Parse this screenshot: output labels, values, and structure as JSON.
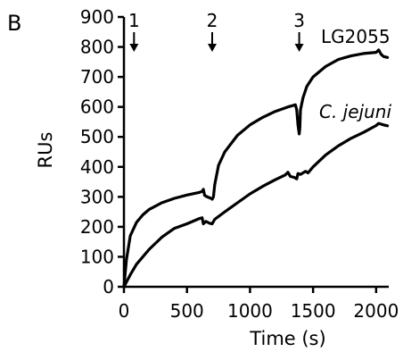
{
  "chart_data": {
    "type": "line",
    "panel_label": "B",
    "title": "",
    "xlabel": "Time (s)",
    "ylabel": "RUs",
    "xlim": [
      0,
      2100
    ],
    "ylim": [
      0,
      900
    ],
    "x_ticks": [
      0,
      500,
      1000,
      1500,
      2000
    ],
    "y_ticks": [
      0,
      100,
      200,
      300,
      400,
      500,
      600,
      700,
      800,
      900
    ],
    "grid": false,
    "legend": "none",
    "series": [
      {
        "name": "LG2055",
        "color": "#000000",
        "points": [
          [
            0,
            0
          ],
          [
            20,
            90
          ],
          [
            50,
            170
          ],
          [
            100,
            215
          ],
          [
            150,
            240
          ],
          [
            200,
            258
          ],
          [
            300,
            280
          ],
          [
            400,
            295
          ],
          [
            500,
            306
          ],
          [
            600,
            315
          ],
          [
            620,
            318
          ],
          [
            630,
            325
          ],
          [
            640,
            305
          ],
          [
            660,
            300
          ],
          [
            690,
            295
          ],
          [
            700,
            292
          ],
          [
            710,
            300
          ],
          [
            720,
            340
          ],
          [
            750,
            405
          ],
          [
            800,
            450
          ],
          [
            900,
            505
          ],
          [
            1000,
            540
          ],
          [
            1100,
            565
          ],
          [
            1200,
            585
          ],
          [
            1300,
            600
          ],
          [
            1360,
            607
          ],
          [
            1370,
            590
          ],
          [
            1380,
            540
          ],
          [
            1390,
            510
          ],
          [
            1395,
            530
          ],
          [
            1400,
            590
          ],
          [
            1420,
            630
          ],
          [
            1450,
            668
          ],
          [
            1500,
            700
          ],
          [
            1600,
            735
          ],
          [
            1700,
            758
          ],
          [
            1800,
            770
          ],
          [
            1900,
            778
          ],
          [
            2000,
            782
          ],
          [
            2020,
            790
          ],
          [
            2040,
            775
          ],
          [
            2060,
            768
          ],
          [
            2090,
            765
          ]
        ]
      },
      {
        "name": "C. jejuni",
        "color": "#000000",
        "points": [
          [
            0,
            0
          ],
          [
            50,
            40
          ],
          [
            100,
            75
          ],
          [
            200,
            125
          ],
          [
            300,
            165
          ],
          [
            400,
            195
          ],
          [
            500,
            210
          ],
          [
            600,
            228
          ],
          [
            620,
            230
          ],
          [
            630,
            210
          ],
          [
            650,
            218
          ],
          [
            680,
            212
          ],
          [
            700,
            210
          ],
          [
            720,
            225
          ],
          [
            800,
            250
          ],
          [
            900,
            280
          ],
          [
            1000,
            310
          ],
          [
            1100,
            335
          ],
          [
            1200,
            357
          ],
          [
            1280,
            373
          ],
          [
            1300,
            382
          ],
          [
            1320,
            368
          ],
          [
            1350,
            365
          ],
          [
            1370,
            360
          ],
          [
            1380,
            378
          ],
          [
            1400,
            375
          ],
          [
            1440,
            385
          ],
          [
            1460,
            380
          ],
          [
            1500,
            400
          ],
          [
            1600,
            440
          ],
          [
            1700,
            470
          ],
          [
            1800,
            495
          ],
          [
            1900,
            515
          ],
          [
            2000,
            538
          ],
          [
            2020,
            545
          ],
          [
            2060,
            540
          ],
          [
            2090,
            537
          ]
        ]
      }
    ],
    "series_labels": [
      {
        "text": "LG2055",
        "italic": false
      },
      {
        "text": "C. jejuni",
        "italic": true
      }
    ],
    "annotations": [
      {
        "text": "1",
        "x": 80
      },
      {
        "text": "2",
        "x": 700
      },
      {
        "text": "3",
        "x": 1390
      }
    ]
  }
}
